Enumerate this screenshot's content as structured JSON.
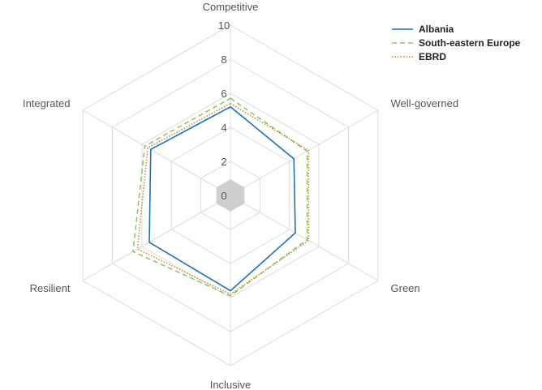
{
  "chart_data": {
    "type": "radar",
    "axes": [
      "Competitive",
      "Well-governed",
      "Green",
      "Inclusive",
      "Resilient",
      "Integrated"
    ],
    "rlim": [
      0,
      10
    ],
    "ticks": [
      "0",
      "2",
      "4",
      "6",
      "8",
      "10"
    ],
    "tick_values": [
      0,
      2,
      4,
      6,
      8,
      10
    ],
    "legend_position": "top-right",
    "grid": true,
    "series": [
      {
        "name": "Albania",
        "values": [
          5.2,
          4.3,
          4.4,
          5.6,
          5.5,
          5.4
        ],
        "color": "#1a73b8",
        "dash": "solid"
      },
      {
        "name": "South-eastern Europe",
        "values": [
          5.7,
          5.2,
          5.2,
          5.9,
          6.6,
          5.8
        ],
        "color": "#8cc265",
        "dash": "dashed"
      },
      {
        "name": "EBRD",
        "values": [
          5.4,
          5.3,
          5.3,
          5.8,
          6.3,
          5.6
        ],
        "color": "#c88a2c",
        "dash": "dotted"
      }
    ]
  }
}
